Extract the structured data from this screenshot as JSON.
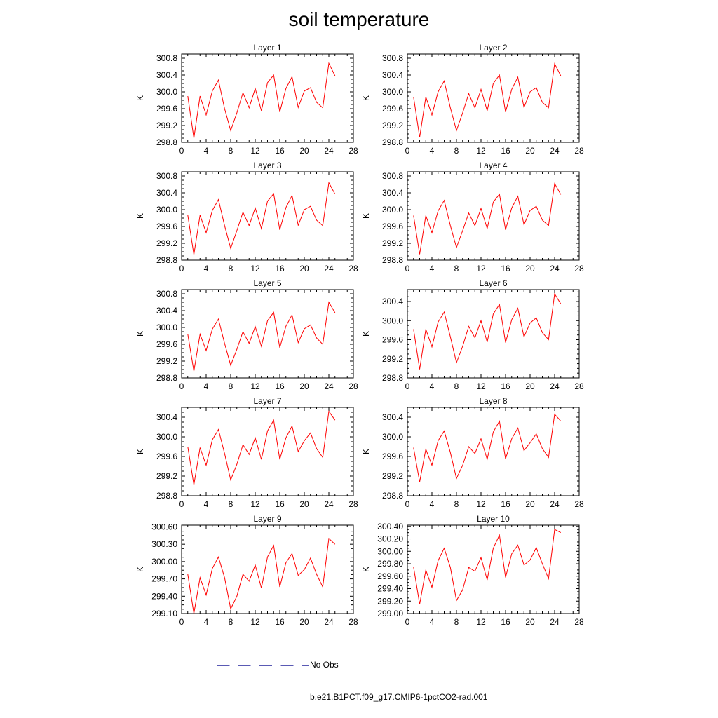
{
  "title": "soil temperature",
  "legend": {
    "items": [
      {
        "label": "No Obs",
        "style": "dashed",
        "color": "#5a5ab4"
      },
      {
        "label": "b.e21.B1PCT.f09_g17.CMIP6-1pctCO2-rad.001",
        "style": "solid",
        "color": "#e8a0a0"
      }
    ]
  },
  "colors": {
    "series": "#ff0000",
    "axis": "#000000"
  },
  "chart_data": [
    {
      "type": "line",
      "title": "Layer 1",
      "ylabel": "K",
      "xlim": [
        0,
        28
      ],
      "ylim": [
        298.8,
        300.9
      ],
      "xticks": [
        0,
        4,
        8,
        12,
        16,
        20,
        24,
        28
      ],
      "yticks": [
        "298.8",
        "299.2",
        "299.6",
        "300.0",
        "300.4",
        "300.8"
      ],
      "x": [
        1,
        2,
        3,
        4,
        5,
        6,
        7,
        8,
        9,
        10,
        11,
        12,
        13,
        14,
        15,
        16,
        17,
        18,
        19,
        20,
        21,
        22,
        23,
        24,
        25
      ],
      "series": [
        {
          "values": [
            299.9,
            298.9,
            299.9,
            299.45,
            300.02,
            300.28,
            299.6,
            299.08,
            299.5,
            299.98,
            299.62,
            300.08,
            299.55,
            300.22,
            300.4,
            299.52,
            300.08,
            300.36,
            299.63,
            300.02,
            300.1,
            299.75,
            299.62,
            300.68,
            300.38
          ]
        }
      ]
    },
    {
      "type": "line",
      "title": "Layer 2",
      "ylabel": "K",
      "xlim": [
        0,
        28
      ],
      "ylim": [
        298.8,
        300.9
      ],
      "xticks": [
        0,
        4,
        8,
        12,
        16,
        20,
        24,
        28
      ],
      "yticks": [
        "298.8",
        "299.2",
        "299.6",
        "300.0",
        "300.4",
        "300.8"
      ],
      "x": [
        1,
        2,
        3,
        4,
        5,
        6,
        7,
        8,
        9,
        10,
        11,
        12,
        13,
        14,
        15,
        16,
        17,
        18,
        19,
        20,
        21,
        22,
        23,
        24,
        25
      ],
      "series": [
        {
          "values": [
            299.88,
            298.92,
            299.88,
            299.45,
            300.0,
            300.26,
            299.62,
            299.08,
            299.5,
            299.96,
            299.62,
            300.06,
            299.55,
            300.2,
            300.4,
            299.52,
            300.06,
            300.35,
            299.63,
            300.0,
            300.1,
            299.75,
            299.62,
            300.67,
            300.38
          ]
        }
      ]
    },
    {
      "type": "line",
      "title": "Layer 3",
      "ylabel": "K",
      "xlim": [
        0,
        28
      ],
      "ylim": [
        298.8,
        300.9
      ],
      "xticks": [
        0,
        4,
        8,
        12,
        16,
        20,
        24,
        28
      ],
      "yticks": [
        "298.8",
        "299.2",
        "299.6",
        "300.0",
        "300.4",
        "300.8"
      ],
      "x": [
        1,
        2,
        3,
        4,
        5,
        6,
        7,
        8,
        9,
        10,
        11,
        12,
        13,
        14,
        15,
        16,
        17,
        18,
        19,
        20,
        21,
        22,
        23,
        24,
        25
      ],
      "series": [
        {
          "values": [
            299.87,
            298.93,
            299.87,
            299.45,
            299.98,
            300.24,
            299.62,
            299.08,
            299.5,
            299.94,
            299.62,
            300.04,
            299.55,
            300.2,
            300.38,
            299.52,
            300.05,
            300.34,
            299.63,
            300.0,
            300.08,
            299.75,
            299.62,
            300.64,
            300.37
          ]
        }
      ]
    },
    {
      "type": "line",
      "title": "Layer 4",
      "ylabel": "K",
      "xlim": [
        0,
        28
      ],
      "ylim": [
        298.8,
        300.9
      ],
      "xticks": [
        0,
        4,
        8,
        12,
        16,
        20,
        24,
        28
      ],
      "yticks": [
        "298.8",
        "299.2",
        "299.6",
        "300.0",
        "300.4",
        "300.8"
      ],
      "x": [
        1,
        2,
        3,
        4,
        5,
        6,
        7,
        8,
        9,
        10,
        11,
        12,
        13,
        14,
        15,
        16,
        17,
        18,
        19,
        20,
        21,
        22,
        23,
        24,
        25
      ],
      "series": [
        {
          "values": [
            299.86,
            298.94,
            299.86,
            299.45,
            299.97,
            300.22,
            299.62,
            299.1,
            299.5,
            299.92,
            299.62,
            300.03,
            299.55,
            300.18,
            300.37,
            299.52,
            300.04,
            300.32,
            299.64,
            299.98,
            300.08,
            299.75,
            299.62,
            300.62,
            300.36
          ]
        }
      ]
    },
    {
      "type": "line",
      "title": "Layer 5",
      "ylabel": "K",
      "xlim": [
        0,
        28
      ],
      "ylim": [
        298.8,
        300.9
      ],
      "xticks": [
        0,
        4,
        8,
        12,
        16,
        20,
        24,
        28
      ],
      "yticks": [
        "298.8",
        "299.2",
        "299.6",
        "300.0",
        "300.4",
        "300.8"
      ],
      "x": [
        1,
        2,
        3,
        4,
        5,
        6,
        7,
        8,
        9,
        10,
        11,
        12,
        13,
        14,
        15,
        16,
        17,
        18,
        19,
        20,
        21,
        22,
        23,
        24,
        25
      ],
      "series": [
        {
          "values": [
            299.84,
            298.96,
            299.84,
            299.45,
            299.96,
            300.2,
            299.62,
            299.1,
            299.48,
            299.9,
            299.62,
            300.02,
            299.55,
            300.16,
            300.36,
            299.52,
            300.03,
            300.3,
            299.64,
            299.97,
            300.06,
            299.75,
            299.6,
            300.6,
            300.35
          ]
        }
      ]
    },
    {
      "type": "line",
      "title": "Layer 6",
      "ylabel": "K",
      "xlim": [
        0,
        28
      ],
      "ylim": [
        298.8,
        300.65
      ],
      "xticks": [
        0,
        4,
        8,
        12,
        16,
        20,
        24,
        28
      ],
      "yticks": [
        "298.8",
        "299.2",
        "299.6",
        "300.0",
        "300.4"
      ],
      "x": [
        1,
        2,
        3,
        4,
        5,
        6,
        7,
        8,
        9,
        10,
        11,
        12,
        13,
        14,
        15,
        16,
        17,
        18,
        19,
        20,
        21,
        22,
        23,
        24,
        25
      ],
      "series": [
        {
          "values": [
            299.82,
            298.98,
            299.82,
            299.45,
            299.97,
            300.18,
            299.66,
            299.12,
            299.46,
            299.88,
            299.64,
            300.0,
            299.55,
            300.14,
            300.34,
            299.54,
            300.02,
            300.26,
            299.66,
            299.95,
            300.06,
            299.75,
            299.6,
            300.56,
            300.35
          ]
        }
      ]
    },
    {
      "type": "line",
      "title": "Layer 7",
      "ylabel": "K",
      "xlim": [
        0,
        28
      ],
      "ylim": [
        298.8,
        300.6
      ],
      "xticks": [
        0,
        4,
        8,
        12,
        16,
        20,
        24,
        28
      ],
      "yticks": [
        "298.8",
        "299.2",
        "299.6",
        "300.0",
        "300.4"
      ],
      "x": [
        1,
        2,
        3,
        4,
        5,
        6,
        7,
        8,
        9,
        10,
        11,
        12,
        13,
        14,
        15,
        16,
        17,
        18,
        19,
        20,
        21,
        22,
        23,
        24,
        25
      ],
      "series": [
        {
          "values": [
            299.8,
            299.02,
            299.78,
            299.42,
            299.94,
            300.15,
            299.66,
            299.12,
            299.44,
            299.84,
            299.64,
            299.98,
            299.54,
            300.12,
            300.34,
            299.54,
            299.98,
            300.22,
            299.7,
            299.92,
            300.08,
            299.76,
            299.58,
            300.52,
            300.34
          ]
        }
      ]
    },
    {
      "type": "line",
      "title": "Layer 8",
      "ylabel": "K",
      "xlim": [
        0,
        28
      ],
      "ylim": [
        298.8,
        300.6
      ],
      "xticks": [
        0,
        4,
        8,
        12,
        16,
        20,
        24,
        28
      ],
      "yticks": [
        "298.8",
        "299.2",
        "299.6",
        "300.0",
        "300.4"
      ],
      "x": [
        1,
        2,
        3,
        4,
        5,
        6,
        7,
        8,
        9,
        10,
        11,
        12,
        13,
        14,
        15,
        16,
        17,
        18,
        19,
        20,
        21,
        22,
        23,
        24,
        25
      ],
      "series": [
        {
          "values": [
            299.78,
            299.08,
            299.75,
            299.42,
            299.92,
            300.12,
            299.68,
            299.15,
            299.42,
            299.8,
            299.66,
            299.96,
            299.54,
            300.1,
            300.32,
            299.55,
            299.96,
            300.18,
            299.72,
            299.88,
            300.06,
            299.76,
            299.58,
            300.46,
            300.32
          ]
        }
      ]
    },
    {
      "type": "line",
      "title": "Layer 9",
      "ylabel": "K",
      "xlim": [
        0,
        28
      ],
      "ylim": [
        299.1,
        300.63
      ],
      "xticks": [
        0,
        4,
        8,
        12,
        16,
        20,
        24,
        28
      ],
      "yticks": [
        "299.10",
        "299.40",
        "299.70",
        "300.00",
        "300.30",
        "300.60"
      ],
      "x": [
        1,
        2,
        3,
        4,
        5,
        6,
        7,
        8,
        9,
        10,
        11,
        12,
        13,
        14,
        15,
        16,
        17,
        18,
        19,
        20,
        21,
        22,
        23,
        24,
        25
      ],
      "series": [
        {
          "values": [
            299.78,
            299.1,
            299.72,
            299.42,
            299.88,
            300.08,
            299.72,
            299.18,
            299.4,
            299.78,
            299.66,
            299.94,
            299.54,
            300.08,
            300.28,
            299.56,
            299.98,
            300.14,
            299.76,
            299.86,
            300.06,
            299.78,
            299.56,
            300.4,
            300.3
          ]
        }
      ]
    },
    {
      "type": "line",
      "title": "Layer 10",
      "ylabel": "K",
      "xlim": [
        0,
        28
      ],
      "ylim": [
        299.0,
        300.42
      ],
      "xticks": [
        0,
        4,
        8,
        12,
        16,
        20,
        24,
        28
      ],
      "yticks": [
        "299.00",
        "299.20",
        "299.40",
        "299.60",
        "299.80",
        "300.00",
        "300.20",
        "300.40"
      ],
      "x": [
        1,
        2,
        3,
        4,
        5,
        6,
        7,
        8,
        9,
        10,
        11,
        12,
        13,
        14,
        15,
        16,
        17,
        18,
        19,
        20,
        21,
        22,
        23,
        24,
        25
      ],
      "series": [
        {
          "values": [
            299.75,
            299.15,
            299.7,
            299.42,
            299.85,
            300.05,
            299.74,
            299.21,
            299.38,
            299.74,
            299.68,
            299.9,
            299.54,
            300.05,
            300.26,
            299.58,
            299.96,
            300.1,
            299.78,
            299.86,
            300.06,
            299.8,
            299.56,
            300.35,
            300.3
          ]
        }
      ]
    }
  ]
}
